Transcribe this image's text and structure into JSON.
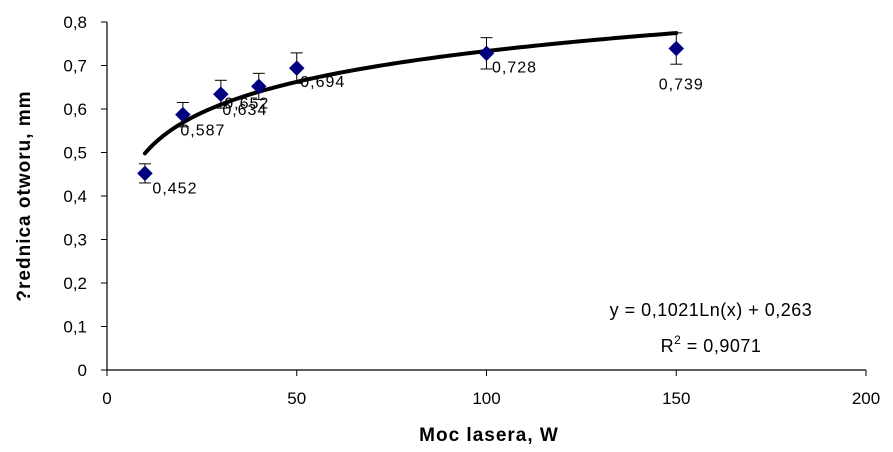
{
  "chart_data": {
    "type": "scatter",
    "xlabel": "Moc lasera,  W",
    "ylabel": "?rednica otworu,  mm",
    "xlim": [
      0,
      200
    ],
    "ylim": [
      0,
      0.8
    ],
    "x_ticks": [
      "0",
      "50",
      "100",
      "150",
      "200"
    ],
    "y_ticks": [
      "0",
      "0,1",
      "0,2",
      "0,3",
      "0,4",
      "0,5",
      "0,6",
      "0,7",
      "0,8"
    ],
    "series": [
      {
        "x": [
          10,
          20,
          30,
          40,
          50,
          100,
          150
        ],
        "y": [
          0.452,
          0.587,
          0.634,
          0.652,
          0.694,
          0.728,
          0.739
        ],
        "labels": [
          "0,452",
          "0,587",
          "0,634",
          "0,652",
          "0,694",
          "0,728",
          "0,739"
        ],
        "error": [
          0.022,
          0.028,
          0.032,
          0.03,
          0.035,
          0.036,
          0.036
        ],
        "color": "#000080"
      }
    ],
    "trendline": {
      "type": "log",
      "a": 0.1021,
      "b": 0.263,
      "x_range": [
        10,
        150
      ],
      "equation": "y = 0,1021Ln(x) + 0,263",
      "r2_prefix": "R",
      "r2_sup": "2",
      "r2_value": " = 0,9071",
      "color": "#000000"
    },
    "grid": false,
    "legend": "none"
  }
}
